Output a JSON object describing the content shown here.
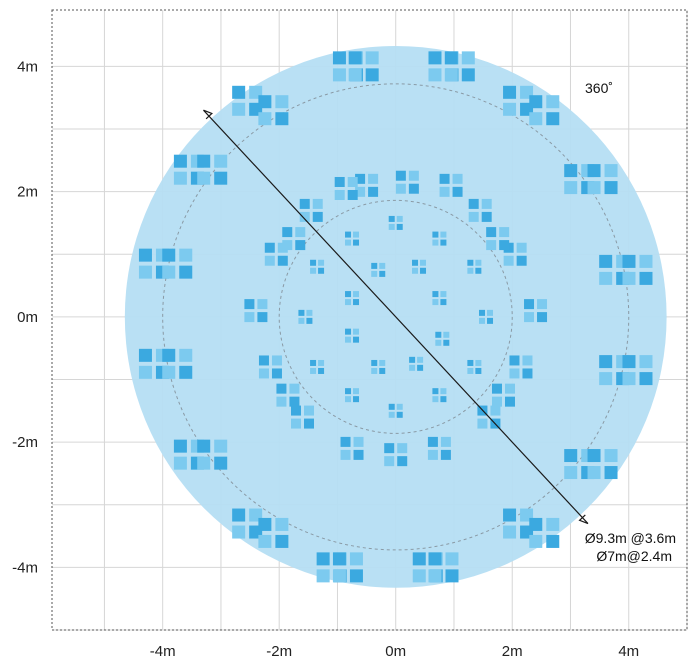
{
  "chart_data": {
    "type": "scatter",
    "x_ticks": [
      "-4m",
      "-2m",
      "0m",
      "2m",
      "4m"
    ],
    "y_ticks": [
      "4m",
      "2m",
      "0m",
      "-2m",
      "-4m"
    ],
    "x_tick_values": [
      -4,
      -2,
      0,
      2,
      4
    ],
    "y_tick_values": [
      4,
      2,
      0,
      -2,
      -4
    ],
    "xlim": [
      -5.9,
      5.0
    ],
    "ylim": [
      -5.0,
      4.9
    ],
    "grid": true,
    "coverage_diameter_m": 9.3,
    "rings_radius_m": [
      4.0,
      2.0
    ],
    "diagonal_from": [
      -3.3,
      3.3
    ],
    "diagonal_to": [
      3.3,
      -3.3
    ],
    "tiles": {
      "outer": [
        [
          -0.82,
          4.0
        ],
        [
          -0.55,
          4.0
        ],
        [
          0.82,
          4.0
        ],
        [
          1.1,
          4.0
        ],
        [
          -2.55,
          3.45
        ],
        [
          -2.1,
          3.3
        ],
        [
          2.1,
          3.45
        ],
        [
          2.55,
          3.3
        ],
        [
          -3.55,
          2.35
        ],
        [
          -3.15,
          2.35
        ],
        [
          3.15,
          2.2
        ],
        [
          3.55,
          2.2
        ],
        [
          -4.15,
          0.85
        ],
        [
          -3.75,
          0.85
        ],
        [
          3.75,
          0.75
        ],
        [
          4.15,
          0.75
        ],
        [
          -4.15,
          -0.75
        ],
        [
          -3.75,
          -0.75
        ],
        [
          3.75,
          -0.85
        ],
        [
          4.15,
          -0.85
        ],
        [
          -3.55,
          -2.2
        ],
        [
          -3.15,
          -2.2
        ],
        [
          3.15,
          -2.35
        ],
        [
          3.55,
          -2.35
        ],
        [
          -2.55,
          -3.3
        ],
        [
          -2.1,
          -3.45
        ],
        [
          2.1,
          -3.3
        ],
        [
          2.55,
          -3.45
        ],
        [
          -1.1,
          -4.0
        ],
        [
          -0.82,
          -4.0
        ],
        [
          0.55,
          -4.0
        ],
        [
          0.82,
          -4.0
        ]
      ],
      "mid": [
        [
          -0.5,
          2.1
        ],
        [
          0.2,
          2.15
        ],
        [
          0.95,
          2.1
        ],
        [
          1.45,
          1.7
        ],
        [
          2.05,
          1.0
        ],
        [
          2.4,
          0.1
        ],
        [
          2.15,
          -0.8
        ],
        [
          1.6,
          -1.6
        ],
        [
          0.75,
          -2.1
        ],
        [
          0.0,
          -2.2
        ],
        [
          -0.75,
          -2.1
        ],
        [
          -1.6,
          -1.6
        ],
        [
          -2.15,
          -0.8
        ],
        [
          -2.4,
          0.1
        ],
        [
          -2.05,
          1.0
        ],
        [
          -1.45,
          1.7
        ],
        [
          -0.85,
          2.05
        ],
        [
          1.75,
          1.25
        ],
        [
          1.85,
          -1.25
        ],
        [
          -1.85,
          -1.25
        ],
        [
          -1.75,
          1.25
        ]
      ],
      "inner": [
        [
          -0.75,
          1.25
        ],
        [
          0.0,
          1.5
        ],
        [
          0.75,
          1.25
        ],
        [
          1.35,
          0.8
        ],
        [
          1.55,
          0.0
        ],
        [
          1.35,
          -0.8
        ],
        [
          0.75,
          -1.25
        ],
        [
          0.0,
          -1.5
        ],
        [
          -0.75,
          -1.25
        ],
        [
          -1.35,
          -0.8
        ],
        [
          -1.55,
          0.0
        ],
        [
          -1.35,
          0.8
        ],
        [
          -0.3,
          0.75
        ],
        [
          0.4,
          0.8
        ],
        [
          0.75,
          0.3
        ],
        [
          0.8,
          -0.35
        ],
        [
          0.35,
          -0.75
        ],
        [
          -0.3,
          -0.8
        ],
        [
          -0.75,
          -0.3
        ],
        [
          -0.75,
          0.3
        ]
      ]
    }
  },
  "annotations": {
    "angle_label": "360˚",
    "dims_line1": "Ø9.3m @3.6m",
    "dims_line2": "Ø7m@2.4m"
  },
  "colors": {
    "coverage_fill": "#b5def3",
    "tile_dark": "#3ba9e0",
    "tile_light": "#7ccaef",
    "grid": "#d6d6d6",
    "ring": "#8a9aa5",
    "arrow": "#1a1a1a",
    "axis_frame": "#555555"
  }
}
